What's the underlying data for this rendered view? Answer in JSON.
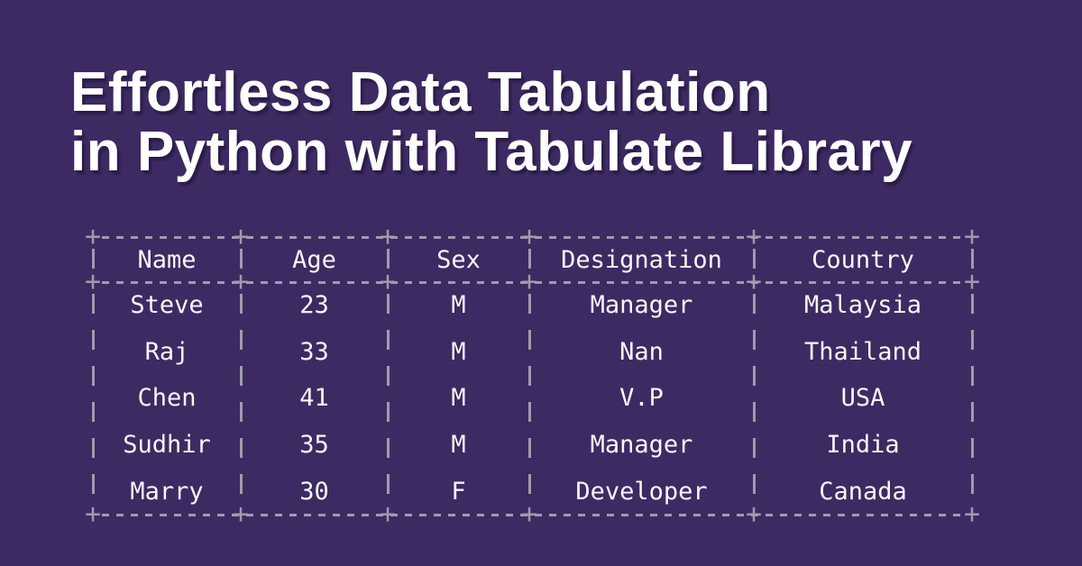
{
  "banner": {
    "title_line1": "Effortless Data Tabulation",
    "title_line2": "in Python with Tabulate Library"
  },
  "chart_data": {
    "type": "table",
    "title": "Effortless Data Tabulation in Python with Tabulate Library",
    "columns": [
      "Name",
      "Age",
      "Sex",
      "Designation",
      "Country"
    ],
    "rows": [
      [
        "Steve",
        "23",
        "M",
        "Manager",
        "Malaysia"
      ],
      [
        "Raj",
        "33",
        "M",
        "Nan",
        "Thailand"
      ],
      [
        "Chen",
        "41",
        "M",
        "V.P",
        "USA"
      ],
      [
        "Sudhir",
        "35",
        "M",
        "Manager",
        "India"
      ],
      [
        "Marry",
        "30",
        "F",
        "Developer",
        "Canada"
      ]
    ],
    "layout": {
      "border_style": "ascii-dashed",
      "intersection_glyph": "+",
      "header_separator": true,
      "grid": "dashed",
      "legend": "none"
    }
  },
  "icons": {
    "plus_mark": "+"
  },
  "colors": {
    "background": "#3d2a62",
    "border": "#a09aae",
    "table_text": "#f9f7fb",
    "title_text": "#ffffff"
  }
}
